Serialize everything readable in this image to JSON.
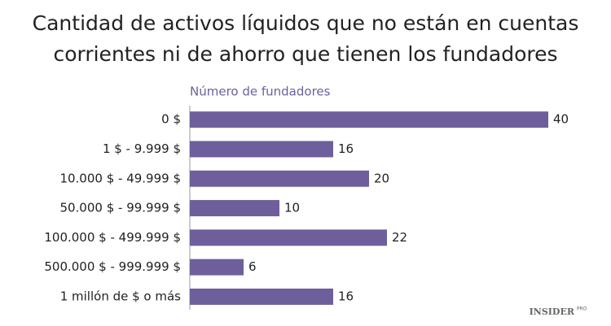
{
  "chart_data": {
    "type": "bar",
    "orientation": "horizontal",
    "title": [
      "Cantidad de activos líquidos que no están en cuentas",
      "corrientes ni de ahorro que tienen los fundadores"
    ],
    "x_label": "Número de fundadores",
    "categories": [
      "0 $",
      "1 $ - 9.999 $",
      "10.000 $ - 49.999 $",
      "50.000 $ - 99.999 $",
      "100.000 $ - 499.999 $",
      "500.000 $ - 999.999 $",
      "1 millón de $ o más"
    ],
    "values": [
      40,
      16,
      20,
      10,
      22,
      6,
      16
    ],
    "color": "#6e5f9c",
    "watermark": "INSIDER",
    "watermark_badge": "PRO"
  }
}
